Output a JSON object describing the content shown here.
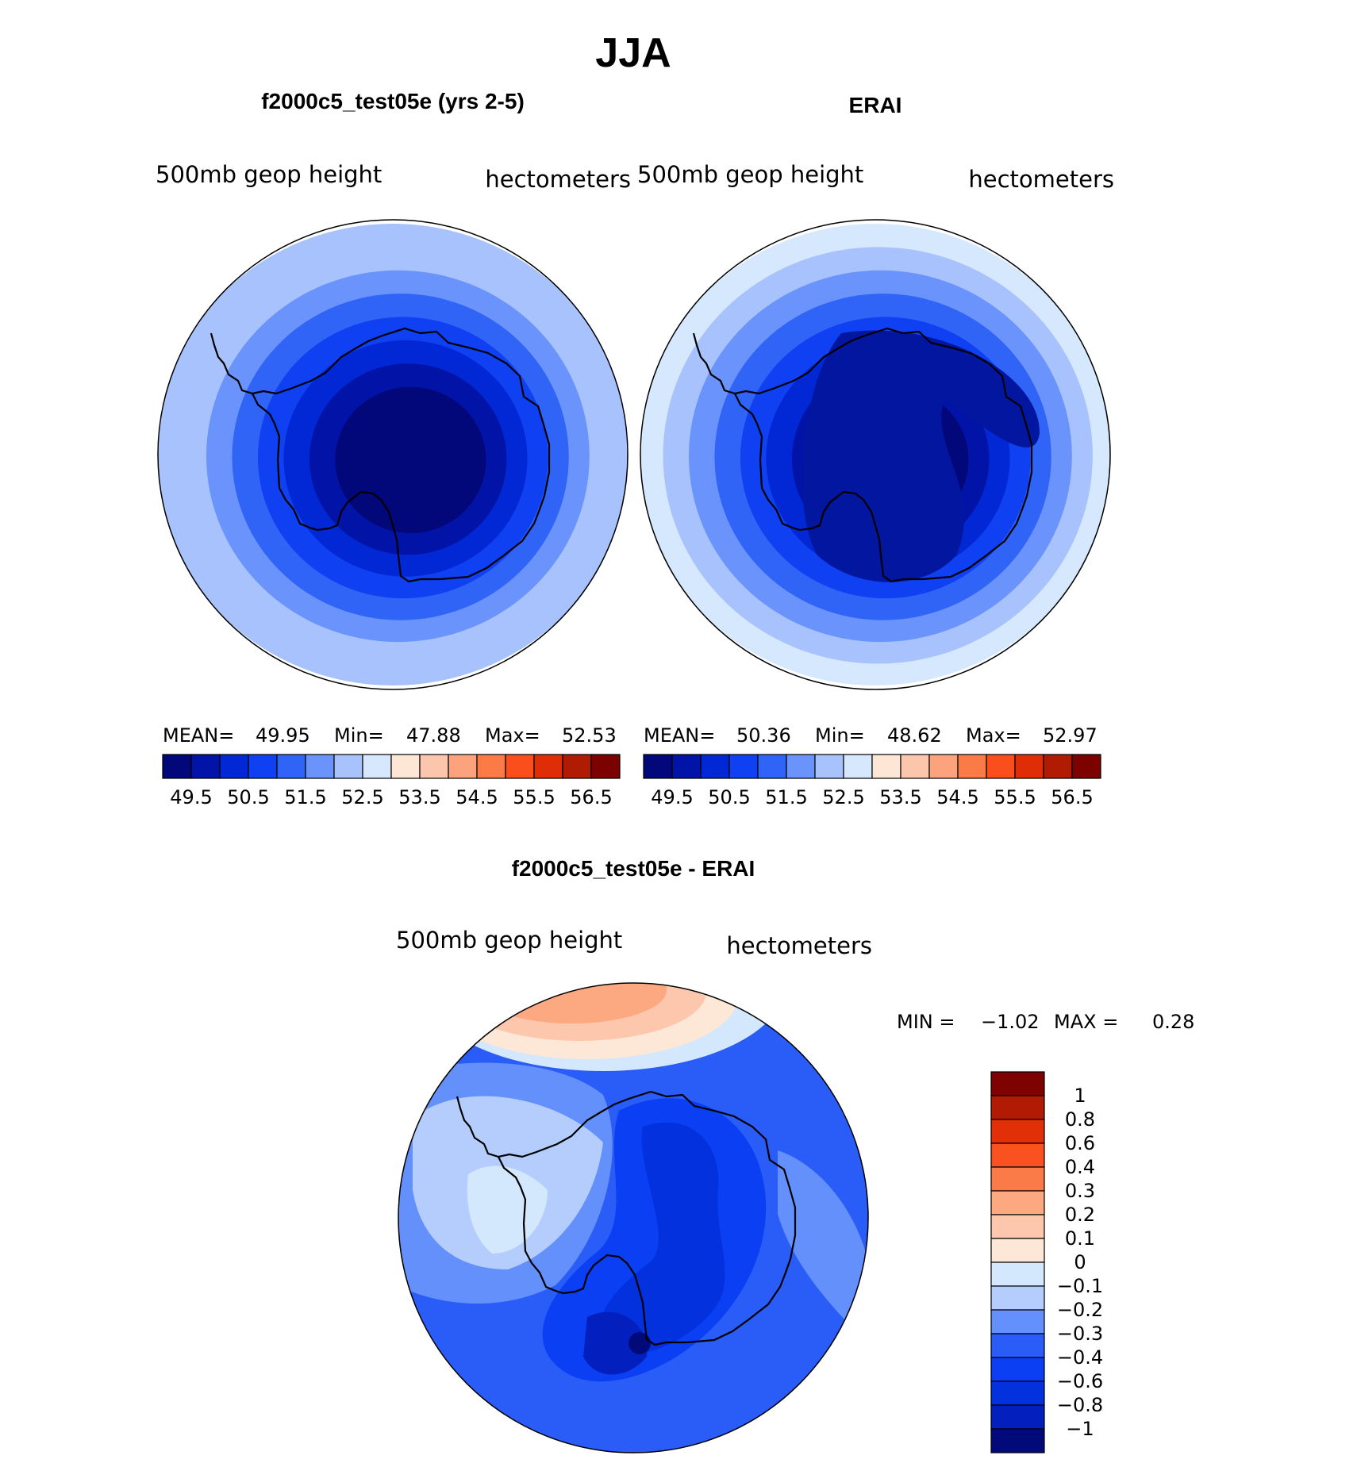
{
  "main_title": "JJA",
  "colors": {
    "model_levels": [
      "#020779",
      "#0214a8",
      "#0228d6",
      "#0f40f1",
      "#3064f7",
      "#6a94fb",
      "#a7c2fc",
      "#d6e8fd",
      "#fde6d5",
      "#fcc6ac",
      "#fca27c",
      "#fb7b46",
      "#fa4f1d",
      "#df2e07",
      "#b01b03",
      "#7c0200"
    ],
    "diff_levels": [
      "#010a78",
      "#0320bf",
      "#0331de",
      "#0b3ff4",
      "#2a5cf8",
      "#6390fb",
      "#b4cdfd",
      "#d4e8fd",
      "#fde7d7",
      "#fcc7ad",
      "#fca982",
      "#fa7b47",
      "#fa5120",
      "#e12f08",
      "#b21b03",
      "#7d0200"
    ]
  },
  "chart_data": [
    {
      "type": "heatmap",
      "name": "panel-model",
      "title": "f2000c5_test05e (yrs 2-5)",
      "left_label": "500mb  geop  height",
      "right_label": "hectometers",
      "stats": {
        "mean_label": "MEAN=",
        "mean": "49.95",
        "min_label": "Min=",
        "min": "47.88",
        "max_label": "Max=",
        "max": "52.53"
      },
      "colorbar_ticks": [
        "49.5",
        "50.5",
        "51.5",
        "52.5",
        "53.5",
        "54.5",
        "55.5",
        "56.5"
      ],
      "rings": [
        52.25,
        52.0,
        51.5,
        51.0,
        50.5,
        50.0,
        49.5,
        49.0
      ]
    },
    {
      "type": "heatmap",
      "name": "panel-erai",
      "title": "ERAI",
      "left_label": "500mb  geop  height",
      "right_label": "hectometers",
      "stats": {
        "mean_label": "MEAN=",
        "mean": "50.36",
        "min_label": "Min=",
        "min": "48.62",
        "max_label": "Max=",
        "max": "52.97"
      },
      "colorbar_ticks": [
        "49.5",
        "50.5",
        "51.5",
        "52.5",
        "53.5",
        "54.5",
        "55.5",
        "56.5"
      ],
      "rings": [
        52.75,
        52.25,
        51.75,
        51.25,
        50.75,
        50.25,
        49.75,
        49.25
      ]
    },
    {
      "type": "heatmap",
      "name": "panel-diff",
      "title": "f2000c5_test05e - ERAI",
      "left_label": "500mb  geop  height",
      "right_label": "hectometers",
      "stats": {
        "min_label": "MIN =",
        "min": "−1.02",
        "max_label": "MAX =",
        "max": "0.28"
      },
      "colorbar_ticks": [
        "1",
        "0.8",
        "0.6",
        "0.4",
        "0.3",
        "0.2",
        "0.1",
        "0",
        "−0.1",
        "−0.2",
        "−0.3",
        "−0.4",
        "−0.6",
        "−0.8",
        "−1"
      ],
      "min_value": -1.02,
      "max_value": 0.28
    }
  ]
}
